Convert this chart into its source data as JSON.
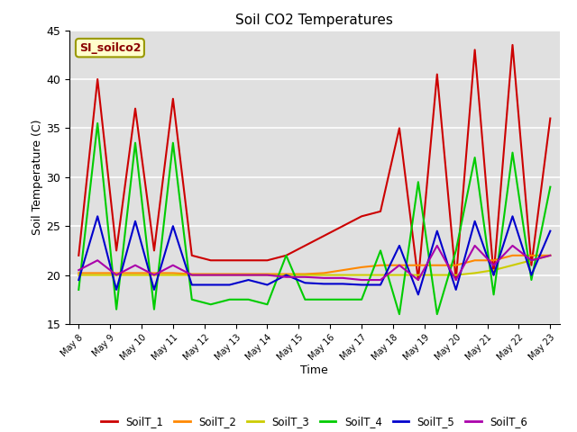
{
  "title": "Soil CO2 Temperatures",
  "xlabel": "Time",
  "ylabel": "Soil Temperature (C)",
  "annotation": "SI_soilco2",
  "ylim": [
    15,
    45
  ],
  "plot_bg_color": "#e0e0e0",
  "fig_bg_color": "#ffffff",
  "series_colors": {
    "SoilT_1": "#cc0000",
    "SoilT_2": "#ff8800",
    "SoilT_3": "#cccc00",
    "SoilT_4": "#00cc00",
    "SoilT_5": "#0000cc",
    "SoilT_6": "#aa00aa"
  },
  "x_labels": [
    "May 8",
    "May 9",
    "May 10",
    "May 11",
    "May 12",
    "May 13",
    "May 14",
    "May 15",
    "May 16",
    "May 17",
    "May 18",
    "May 19",
    "May 20",
    "May 21",
    "May 22",
    "May 23"
  ],
  "SoilT_1": [
    22.0,
    40.0,
    22.5,
    37.0,
    22.5,
    38.0,
    22.0,
    21.5,
    21.5,
    21.5,
    21.5,
    22.0,
    23.0,
    24.0,
    25.0,
    26.0,
    26.5,
    35.0,
    19.5,
    40.5,
    19.5,
    43.0,
    20.0,
    43.5,
    21.0,
    36.0
  ],
  "SoilT_2": [
    20.2,
    20.2,
    20.2,
    20.2,
    20.2,
    20.2,
    20.1,
    20.1,
    20.1,
    20.1,
    20.1,
    20.1,
    20.1,
    20.2,
    20.5,
    20.8,
    21.0,
    21.0,
    21.0,
    21.0,
    21.0,
    21.5,
    21.5,
    22.0,
    22.0,
    22.0
  ],
  "SoilT_3": [
    20.0,
    20.0,
    20.0,
    20.0,
    20.0,
    20.0,
    20.0,
    20.0,
    20.0,
    20.0,
    20.0,
    20.0,
    20.0,
    20.0,
    20.0,
    20.0,
    20.0,
    20.0,
    20.0,
    20.0,
    20.0,
    20.2,
    20.5,
    21.0,
    21.5,
    22.0
  ],
  "SoilT_4": [
    18.5,
    35.5,
    16.5,
    33.5,
    16.5,
    33.5,
    17.5,
    17.0,
    17.5,
    17.5,
    17.0,
    22.0,
    17.5,
    17.5,
    17.5,
    17.5,
    22.5,
    16.0,
    29.5,
    16.0,
    22.5,
    32.0,
    18.0,
    32.5,
    19.5,
    29.0
  ],
  "SoilT_5": [
    19.5,
    26.0,
    18.5,
    25.5,
    18.5,
    25.0,
    19.0,
    19.0,
    19.0,
    19.5,
    19.0,
    20.0,
    19.2,
    19.1,
    19.1,
    19.0,
    19.0,
    23.0,
    18.0,
    24.5,
    18.5,
    25.5,
    20.0,
    26.0,
    20.0,
    24.5
  ],
  "SoilT_6": [
    20.5,
    21.5,
    20.0,
    21.0,
    20.0,
    21.0,
    20.0,
    20.0,
    20.0,
    20.0,
    20.0,
    19.8,
    19.8,
    19.7,
    19.7,
    19.5,
    19.5,
    21.0,
    19.5,
    23.0,
    19.5,
    23.0,
    21.0,
    23.0,
    21.5,
    22.0
  ]
}
